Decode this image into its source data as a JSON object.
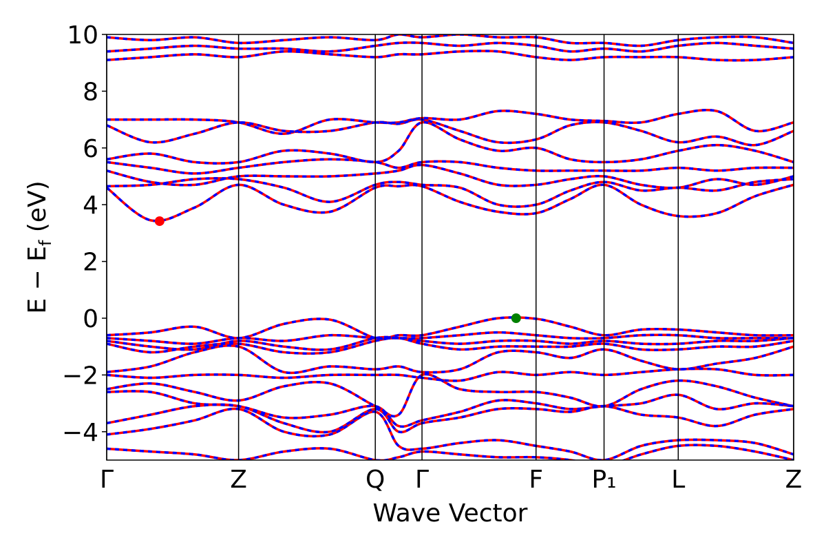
{
  "chart_data": {
    "type": "band-structure",
    "xlabel": "Wave Vector",
    "ylabel": [
      "E − E",
      "f",
      " (eV)"
    ],
    "xlim": [
      0,
      1
    ],
    "ylim": [
      -5,
      10
    ],
    "xticks": [
      {
        "value": 0,
        "label": "Γ"
      },
      {
        "value": 0.192,
        "label": "Z"
      },
      {
        "value": 0.391,
        "label": "Q"
      },
      {
        "value": 0.459,
        "label": "Γ"
      },
      {
        "value": 0.625,
        "label": "F"
      },
      {
        "value": 0.724,
        "label": "P₁"
      },
      {
        "value": 0.832,
        "label": "L"
      },
      {
        "value": 1,
        "label": "Z"
      }
    ],
    "yticks": [
      {
        "value": -4,
        "label": "−4"
      },
      {
        "value": -2,
        "label": "−2"
      },
      0,
      2,
      4,
      6,
      8,
      10
    ],
    "line_styles": [
      {
        "color": "#ff0000",
        "dash": "solid"
      },
      {
        "color": "#0000ff",
        "dash": "dashed"
      }
    ],
    "x": [
      0,
      0.064,
      0.128,
      0.192,
      0.258,
      0.325,
      0.391,
      0.425,
      0.459,
      0.514,
      0.57,
      0.625,
      0.675,
      0.724,
      0.778,
      0.832,
      0.888,
      0.944,
      1
    ],
    "bands": [
      [
        4.6,
        3.45,
        3.9,
        4.7,
        4.0,
        3.75,
        4.6,
        4.65,
        4.65,
        4.1,
        3.75,
        3.7,
        4.2,
        4.7,
        4.0,
        3.6,
        3.7,
        4.3,
        4.7
      ],
      [
        4.65,
        4.7,
        4.9,
        4.9,
        4.6,
        4.1,
        4.7,
        4.8,
        4.7,
        4.6,
        4.0,
        4.0,
        4.5,
        4.8,
        4.5,
        4.6,
        4.5,
        4.8,
        4.9
      ],
      [
        5.2,
        4.8,
        4.7,
        5.0,
        5.0,
        5.0,
        5.1,
        5.2,
        5.4,
        5.1,
        4.7,
        4.7,
        4.9,
        5.0,
        4.7,
        4.6,
        4.9,
        4.7,
        5.0
      ],
      [
        5.5,
        5.3,
        5.1,
        5.3,
        5.5,
        5.6,
        5.5,
        5.3,
        5.5,
        5.5,
        5.3,
        5.2,
        5.2,
        5.2,
        5.2,
        5.3,
        5.2,
        5.3,
        5.3
      ],
      [
        5.6,
        5.8,
        5.5,
        5.5,
        5.9,
        5.8,
        5.5,
        5.9,
        6.9,
        6.3,
        5.9,
        6.0,
        5.6,
        5.5,
        5.6,
        5.9,
        6.1,
        5.9,
        5.5
      ],
      [
        6.8,
        6.2,
        6.5,
        6.9,
        6.6,
        6.6,
        6.9,
        6.85,
        7.0,
        6.6,
        6.2,
        6.3,
        6.8,
        6.9,
        6.6,
        6.2,
        6.4,
        6.1,
        6.6
      ],
      [
        7.0,
        7.0,
        7.0,
        6.9,
        6.5,
        7.0,
        6.9,
        6.9,
        7.05,
        7.0,
        7.3,
        7.2,
        7.0,
        6.95,
        6.9,
        7.2,
        7.3,
        6.6,
        6.9
      ],
      [
        9.1,
        9.2,
        9.3,
        9.2,
        9.4,
        9.3,
        9.2,
        9.3,
        9.3,
        9.4,
        9.4,
        9.2,
        9.1,
        9.2,
        9.2,
        9.2,
        9.1,
        9.1,
        9.2
      ],
      [
        9.4,
        9.5,
        9.6,
        9.5,
        9.5,
        9.4,
        9.6,
        9.7,
        9.7,
        9.6,
        9.7,
        9.6,
        9.4,
        9.5,
        9.4,
        9.6,
        9.7,
        9.6,
        9.5
      ],
      [
        9.9,
        9.8,
        9.9,
        9.7,
        9.8,
        9.9,
        9.8,
        10,
        9.9,
        10,
        9.9,
        9.9,
        9.7,
        9.7,
        9.6,
        9.8,
        9.9,
        9.9,
        9.7
      ],
      [
        -0.6,
        -0.5,
        -0.3,
        -0.7,
        -0.2,
        -0.05,
        -0.7,
        -0.6,
        -0.6,
        -0.3,
        0.0,
        -0.02,
        -0.3,
        -0.6,
        -0.4,
        -0.4,
        -0.5,
        -0.6,
        -0.6
      ],
      [
        -0.7,
        -0.8,
        -0.9,
        -0.7,
        -0.8,
        -0.6,
        -0.7,
        -0.7,
        -0.7,
        -0.6,
        -0.5,
        -0.6,
        -0.7,
        -0.7,
        -0.6,
        -0.6,
        -0.7,
        -0.7,
        -0.7
      ],
      [
        -0.8,
        -1.0,
        -1.1,
        -0.8,
        -1.0,
        -1.1,
        -0.7,
        -0.7,
        -0.8,
        -0.9,
        -0.8,
        -0.8,
        -0.9,
        -0.8,
        -0.9,
        -0.9,
        -0.8,
        -0.8,
        -0.7
      ],
      [
        -0.9,
        -1.2,
        -1.0,
        -0.9,
        -1.2,
        -1.2,
        -0.8,
        -0.7,
        -0.9,
        -1.1,
        -1.0,
        -1.0,
        -1.0,
        -0.9,
        -1.1,
        -1.1,
        -1.0,
        -1.0,
        -0.8
      ],
      [
        -1.9,
        -1.7,
        -1.2,
        -1.0,
        -1.9,
        -1.7,
        -1.8,
        -1.7,
        -1.9,
        -1.8,
        -1.2,
        -1.2,
        -1.4,
        -1.1,
        -1.5,
        -1.8,
        -1.6,
        -1.4,
        -1.0
      ],
      [
        -2.0,
        -2.1,
        -2.0,
        -2.0,
        -2.1,
        -2.0,
        -2.0,
        -2.0,
        -2.1,
        -2.2,
        -1.9,
        -2.0,
        -1.9,
        -2.0,
        -1.9,
        -1.8,
        -1.8,
        -2.0,
        -2.0
      ],
      [
        -2.5,
        -2.3,
        -2.6,
        -2.9,
        -2.4,
        -2.3,
        -3.1,
        -3.4,
        -2.0,
        -2.5,
        -2.6,
        -2.6,
        -2.8,
        -3.1,
        -2.5,
        -2.2,
        -2.4,
        -2.8,
        -3.1
      ],
      [
        -2.6,
        -2.6,
        -3.0,
        -3.1,
        -3.5,
        -3.4,
        -3.1,
        -3.8,
        -3.6,
        -3.3,
        -2.9,
        -3.0,
        -3.2,
        -3.1,
        -3.0,
        -2.7,
        -3.2,
        -3.0,
        -3.1
      ],
      [
        -3.7,
        -3.4,
        -3.1,
        -3.1,
        -3.7,
        -4.0,
        -3.2,
        -4.0,
        -3.7,
        -3.5,
        -3.2,
        -3.2,
        -3.3,
        -3.1,
        -3.4,
        -3.5,
        -3.8,
        -3.4,
        -3.2
      ],
      [
        -4.1,
        -3.9,
        -3.6,
        -3.2,
        -4.0,
        -4.1,
        -3.3,
        -4.5,
        -4.6,
        -4.4,
        -4.3,
        -4.5,
        -4.7,
        -5.0,
        -4.5,
        -4.3,
        -4.3,
        -4.4,
        -4.8
      ],
      [
        -4.6,
        -4.7,
        -4.8,
        -5.0,
        -4.7,
        -4.6,
        -5.0,
        -4.9,
        -4.7,
        -4.8,
        -4.9,
        -4.9,
        -5.0,
        -5.2,
        -4.8,
        -4.5,
        -4.5,
        -4.7,
        -5.0
      ]
    ],
    "points": [
      {
        "x": 0.077,
        "y": 3.42,
        "color": "#ff0000"
      },
      {
        "x": 0.596,
        "y": 0,
        "color": "#008000"
      }
    ]
  }
}
